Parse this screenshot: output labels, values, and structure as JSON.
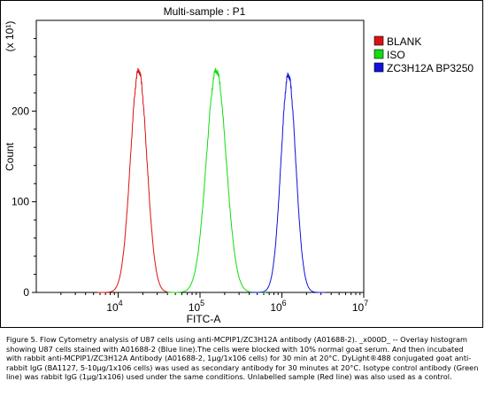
{
  "chart_data": {
    "type": "line",
    "title": "Multi-sample : P1",
    "xlabel": "FITC-A",
    "ylabel": "Count",
    "y_multiplier_label": "(x 10¹)",
    "x_scale": "log",
    "xlim": [
      1000,
      10000000
    ],
    "x_ticks": [
      {
        "value": 10000,
        "base": "10",
        "exp": "4"
      },
      {
        "value": 100000,
        "base": "10",
        "exp": "5"
      },
      {
        "value": 1000000,
        "base": "10",
        "exp": "6"
      },
      {
        "value": 10000000,
        "base": "10",
        "exp": "7"
      }
    ],
    "ylim": [
      0,
      300
    ],
    "y_ticks": [
      0,
      100,
      200
    ],
    "grid": false,
    "legend_position": "right",
    "series": [
      {
        "name": "BLANK",
        "color": "#dd1111",
        "swatch": "#dd1111",
        "peak_x": 17800,
        "peak_y": 245,
        "width_decades": 0.1
      },
      {
        "name": "ISO",
        "color": "#11dd11",
        "swatch": "#11dd11",
        "peak_x": 158000,
        "peak_y": 245,
        "width_decades": 0.12
      },
      {
        "name": "ZC3H12A BP3250",
        "color": "#1111dd",
        "swatch": "#1111dd",
        "peak_x": 1200000,
        "peak_y": 240,
        "width_decades": 0.09
      }
    ]
  },
  "caption": "Figure 5. Flow Cytometry analysis of U87 cells using anti-MCPIP1/ZC3H12A antibody (A01688-2). _x000D_ -- Overlay histogram showing U87 cells stained with A01688-2 (Blue line).The cells were blocked with 10% normal goat serum. And then incubated with rabbit anti-MCPIP1/ZC3H12A Antibody (A01688-2, 1μg/1x106 cells) for 30 min at 20°C. DyLight®488 conjugated goat anti-rabbit IgG (BA1127, 5-10μg/1x106 cells) was used as secondary antibody for 30 minutes at 20°C. Isotype control antibody (Green line) was rabbit IgG (1μg/1x106) used under the same conditions. Unlabelled sample (Red line) was also used as a control."
}
